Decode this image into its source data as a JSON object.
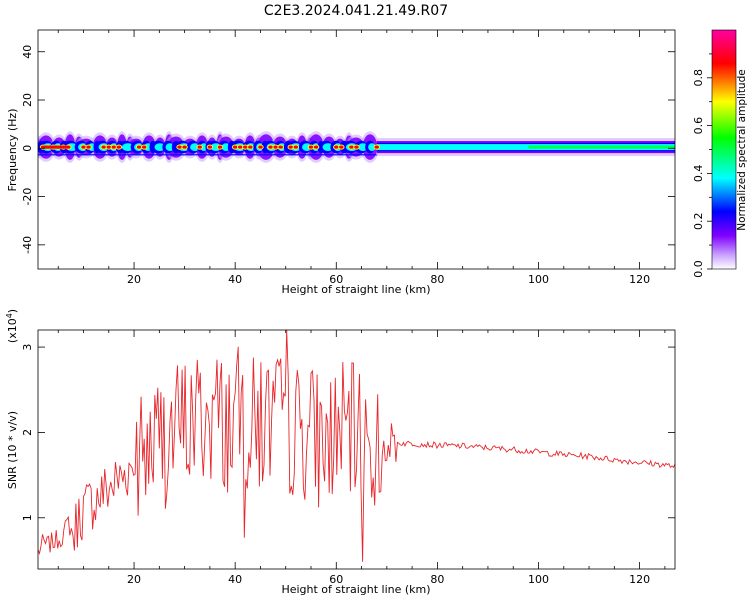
{
  "title": "C2E3.2024.041.21.49.R07",
  "chart_data": [
    {
      "type": "heatmap",
      "xlabel": "Height of straight line (km)",
      "ylabel": "Frequency (Hz)",
      "xlim": [
        1,
        127
      ],
      "ylim": [
        -50,
        49
      ],
      "xticks": [
        20,
        40,
        60,
        80,
        100,
        120
      ],
      "yticks": [
        -40,
        -20,
        0,
        20,
        40
      ],
      "colorbar": {
        "label": "Normalized spectral amplitude",
        "range": [
          0,
          1
        ],
        "ticks": [
          0.0,
          0.2,
          0.4,
          0.6,
          0.8
        ],
        "tick_labels": [
          "0.0",
          "0.2",
          "0.4",
          "0.6",
          "0.8"
        ],
        "colors": [
          "#ffffff",
          "#c8a0ff",
          "#8000ff",
          "#0000ff",
          "#00ffff",
          "#00ff00",
          "#ffff00",
          "#ff0000",
          "#ff00a0"
        ]
      },
      "band": {
        "center_hz": 0.5,
        "segments": [
          {
            "x_start": 1,
            "x_end": 68,
            "halfwidth_hz": 3.5,
            "character": "speckled, high amplitude peaks"
          },
          {
            "x_start": 68,
            "x_end": 127,
            "halfwidth_hz": 2.5,
            "character": "smooth, medium amplitude"
          }
        ],
        "peaks_x": [
          2,
          3,
          4,
          5,
          6,
          7,
          10,
          11,
          14,
          15,
          16,
          17,
          21,
          22,
          29,
          30,
          33,
          35,
          37,
          40,
          41,
          42,
          43,
          45,
          47,
          48,
          49,
          51,
          52,
          55,
          56,
          60,
          61,
          63,
          64,
          68
        ]
      }
    },
    {
      "type": "line",
      "xlabel": "Height of straight line (km)",
      "ylabel": "SNR (10 * v/v)",
      "y_multiplier": "(x10",
      "y_multiplier_exp": "4",
      "y_multiplier_close": ")",
      "xlim": [
        1,
        127
      ],
      "ylim": [
        0.4,
        3.2
      ],
      "xticks": [
        20,
        40,
        60,
        80,
        100,
        120
      ],
      "yticks": [
        1,
        2,
        3
      ],
      "color": "#e8262b",
      "series": [
        {
          "x": [
            1,
            2,
            3,
            4,
            5,
            6,
            7,
            8,
            9,
            10,
            12,
            14,
            16,
            18,
            20,
            22,
            24,
            26,
            28,
            30,
            32,
            34,
            36,
            38,
            40,
            42,
            44,
            46,
            48,
            50,
            52,
            54,
            56,
            58,
            60,
            62,
            64,
            66,
            68,
            70,
            75,
            80,
            85,
            90,
            95,
            100,
            105,
            110,
            115,
            120,
            125,
            127
          ],
          "y": [
            0.6,
            0.7,
            0.68,
            0.72,
            0.75,
            0.8,
            0.95,
            0.78,
            1.0,
            1.1,
            1.2,
            1.3,
            1.4,
            1.5,
            1.65,
            1.7,
            1.85,
            1.95,
            2.0,
            2.1,
            2.15,
            2.15,
            2.2,
            2.1,
            2.2,
            2.1,
            2.05,
            2.1,
            2.15,
            2.1,
            2.0,
            2.05,
            1.95,
            1.9,
            2.0,
            2.0,
            1.95,
            1.85,
            1.8,
            1.88,
            1.87,
            1.85,
            1.84,
            1.82,
            1.8,
            1.77,
            1.74,
            1.72,
            1.68,
            1.65,
            1.62,
            1.6
          ]
        }
      ]
    }
  ]
}
